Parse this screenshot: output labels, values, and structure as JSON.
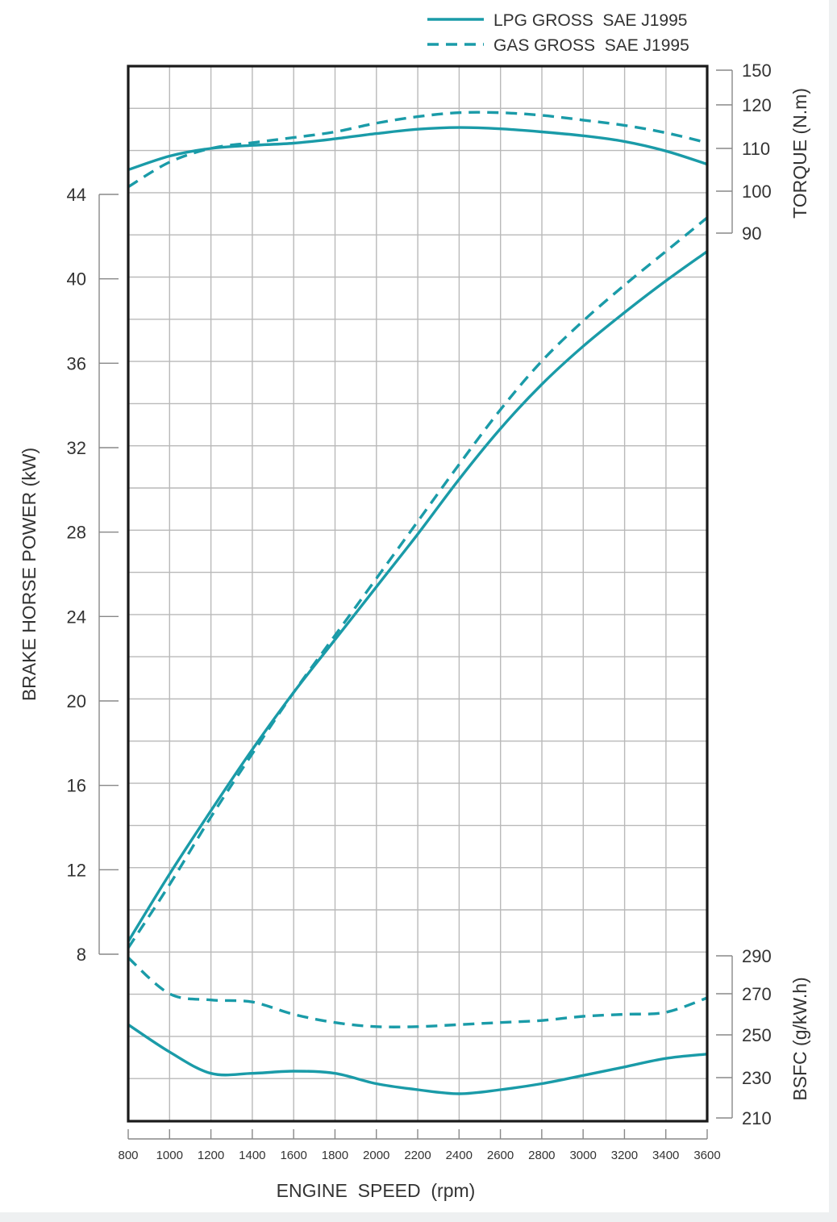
{
  "chart_data": {
    "type": "line",
    "xlabel": "ENGINE  SPEED  (rpm)",
    "x_ticks": [
      "800",
      "1000",
      "1200",
      "1400",
      "1600",
      "1800",
      "2000",
      "2200",
      "2400",
      "2600",
      "2800",
      "3000",
      "3200",
      "3400",
      "3600"
    ],
    "xlim": [
      800,
      3600
    ],
    "grid": true,
    "legend_position": "top-right",
    "accent_color": "#1a9ba8",
    "legend": [
      {
        "label": "LPG GROSS  SAE J1995",
        "style": "solid"
      },
      {
        "label": "GAS GROSS  SAE J1995",
        "style": "dashed"
      }
    ],
    "axes": {
      "power": {
        "label": "BRAKE HORSE POWER (kW)",
        "ticks": [
          "44",
          "40",
          "36",
          "32",
          "28",
          "24",
          "20",
          "16",
          "12",
          "8"
        ]
      },
      "torque": {
        "label": "TORQUE (N.m)",
        "ticks": [
          "150",
          "120",
          "110",
          "100",
          "90"
        ]
      },
      "bsfc": {
        "label": "BSFC (g/kW.h)",
        "ticks": [
          "290",
          "270",
          "250",
          "230",
          "210"
        ]
      }
    },
    "series": [
      {
        "name": "LPG GROSS  SAE J1995",
        "quantity": "torque",
        "unit": "N.m",
        "style": "solid",
        "x": [
          800,
          1000,
          1200,
          1400,
          1600,
          1800,
          2000,
          2200,
          2400,
          2600,
          2800,
          3000,
          3200,
          3400,
          3600
        ],
        "y": [
          105,
          108.2,
          110,
          110.7,
          111.2,
          112.2,
          113.4,
          114.4,
          114.8,
          114.5,
          113.8,
          112.9,
          111.6,
          109.4,
          106.3
        ]
      },
      {
        "name": "GAS GROSS  SAE J1995",
        "quantity": "torque",
        "unit": "N.m",
        "style": "dashed",
        "x": [
          800,
          1000,
          1200,
          1400,
          1600,
          1800,
          2000,
          2200,
          2400,
          2600,
          2800,
          3000,
          3200,
          3400,
          3600
        ],
        "y": [
          101,
          106.8,
          110,
          111.3,
          112.5,
          113.8,
          115.8,
          117.3,
          118.2,
          118.2,
          117.6,
          116.5,
          115.3,
          113.6,
          111.3
        ]
      },
      {
        "name": "LPG GROSS  SAE J1995",
        "quantity": "power",
        "unit": "kW",
        "style": "solid",
        "x": [
          800,
          1000,
          1200,
          1400,
          1600,
          1800,
          2000,
          2200,
          2400,
          2600,
          2800,
          3000,
          3200,
          3400,
          3600
        ],
        "y": [
          8.6,
          11.8,
          14.8,
          17.7,
          20.4,
          22.9,
          25.4,
          27.9,
          30.5,
          32.9,
          35.0,
          36.8,
          38.4,
          39.9,
          41.3
        ]
      },
      {
        "name": "GAS GROSS  SAE J1995",
        "quantity": "power",
        "unit": "kW",
        "style": "dashed",
        "x": [
          800,
          1000,
          1200,
          1400,
          1600,
          1800,
          2000,
          2200,
          2400,
          2600,
          2800,
          3000,
          3200,
          3400,
          3600
        ],
        "y": [
          8.3,
          11.3,
          14.5,
          17.5,
          20.4,
          23.1,
          25.8,
          28.5,
          31.2,
          33.8,
          36.1,
          38.0,
          39.7,
          41.3,
          42.9
        ]
      },
      {
        "name": "LPG GROSS  SAE J1995",
        "quantity": "bsfc",
        "unit": "g/kW.h",
        "style": "solid",
        "x": [
          800,
          1000,
          1200,
          1400,
          1600,
          1800,
          2000,
          2200,
          2400,
          2600,
          2800,
          3000,
          3200,
          3400,
          3600
        ],
        "y": [
          255,
          242,
          232,
          232,
          233,
          232,
          227,
          224,
          222,
          224,
          227,
          231,
          235,
          239,
          241
        ]
      },
      {
        "name": "GAS GROSS  SAE J1995",
        "quantity": "bsfc",
        "unit": "g/kW.h",
        "style": "dashed",
        "x": [
          800,
          1000,
          1200,
          1400,
          1600,
          1800,
          2000,
          2200,
          2400,
          2600,
          2800,
          3000,
          3200,
          3400,
          3600
        ],
        "y": [
          289,
          270,
          267,
          266,
          260,
          256,
          254,
          254,
          255,
          256,
          257,
          259,
          260,
          261,
          268
        ]
      }
    ]
  }
}
